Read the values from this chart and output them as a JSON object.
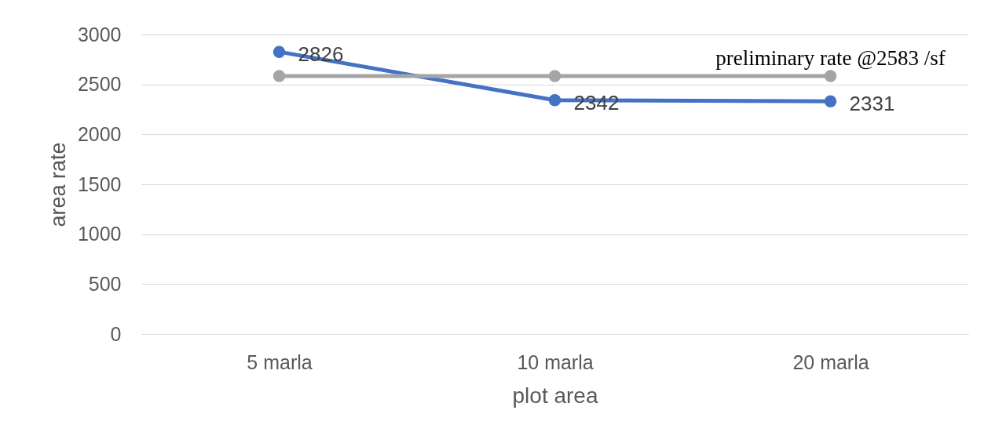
{
  "chart_data": {
    "type": "line",
    "xlabel": "plot area",
    "ylabel": "area rate",
    "categories": [
      "5 marla",
      "10 marla",
      "20 marla"
    ],
    "series": [
      {
        "color": "#4472c4",
        "values": [
          2826,
          2342,
          2331
        ],
        "value_labels": [
          "2826",
          "2342",
          "2331"
        ]
      },
      {
        "name": "preliminary rate @2583 /sf",
        "color": "#a5a5a5",
        "values": [
          2583,
          2583,
          2583
        ]
      }
    ],
    "ylim": [
      0,
      3000
    ],
    "yticks": [
      0,
      500,
      1000,
      1500,
      2000,
      2500,
      3000
    ],
    "grid": "y",
    "marker": "circle",
    "line_style": "solid",
    "legend": false
  }
}
